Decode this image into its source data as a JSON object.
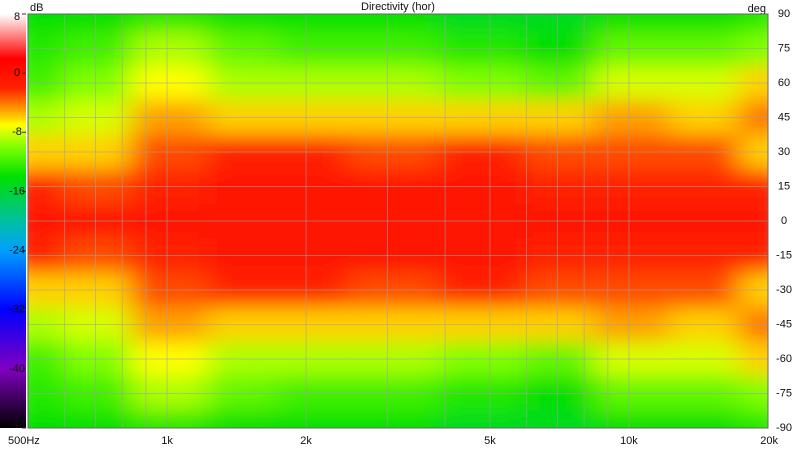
{
  "chart_data": {
    "type": "heatmap",
    "title": "Directivity (hor)",
    "colorbar_label": "dB",
    "y_axis_label": "deg",
    "x": [
      500,
      700,
      1000,
      1500,
      2000,
      3000,
      5000,
      7000,
      10000,
      15000,
      20000
    ],
    "y": [
      90,
      75,
      60,
      45,
      30,
      15,
      0,
      -15,
      -30,
      -45,
      -60,
      -75,
      -90
    ],
    "z": [
      [
        -14,
        -14,
        -13,
        -14,
        -14,
        -14,
        -15,
        -15,
        -14,
        -14,
        -13
      ],
      [
        -13,
        -12,
        -9,
        -11,
        -12,
        -12,
        -13,
        -14,
        -11,
        -11,
        -10
      ],
      [
        -12,
        -10,
        -7,
        -9,
        -9,
        -9,
        -10,
        -11,
        -8,
        -8,
        -6
      ],
      [
        -9,
        -8,
        -5,
        -6,
        -6,
        -6,
        -6,
        -6,
        -5,
        -6,
        -4
      ],
      [
        -6,
        -6,
        -3,
        -2,
        -2,
        -3,
        -2,
        -3,
        -3,
        -3,
        -6
      ],
      [
        -2,
        -3,
        -2,
        -1,
        -1,
        -1,
        -1,
        -2,
        -2,
        -2,
        -2
      ],
      [
        -1,
        -1,
        -1,
        -1,
        -1,
        -1,
        -1,
        -1,
        -1,
        -1,
        -1
      ],
      [
        -2,
        -3,
        -2,
        -1,
        -1,
        -1,
        -1,
        -2,
        -2,
        -2,
        -2
      ],
      [
        -6,
        -6,
        -3,
        -2,
        -2,
        -3,
        -2,
        -3,
        -3,
        -3,
        -6
      ],
      [
        -9,
        -8,
        -5,
        -6,
        -6,
        -6,
        -6,
        -6,
        -5,
        -6,
        -4
      ],
      [
        -12,
        -10,
        -7,
        -9,
        -9,
        -9,
        -10,
        -11,
        -8,
        -8,
        -6
      ],
      [
        -13,
        -12,
        -9,
        -11,
        -12,
        -12,
        -13,
        -14,
        -11,
        -11,
        -10
      ],
      [
        -14,
        -14,
        -13,
        -14,
        -14,
        -14,
        -15,
        -15,
        -14,
        -14,
        -13
      ]
    ],
    "xlim": [
      500,
      20000
    ],
    "x_log_scale": true,
    "xticks": [
      {
        "value": 500,
        "label": "500Hz"
      },
      {
        "value": 1000,
        "label": "1k"
      },
      {
        "value": 2000,
        "label": "2k"
      },
      {
        "value": 5000,
        "label": "5k"
      },
      {
        "value": 10000,
        "label": "10k"
      },
      {
        "value": 20000,
        "label": "20k"
      }
    ],
    "x_minor_grid": [
      600,
      700,
      800,
      900,
      3000,
      4000,
      6000,
      7000,
      8000,
      9000
    ],
    "ylim": [
      -90,
      90
    ],
    "yticks": [
      90,
      75,
      60,
      45,
      30,
      15,
      0,
      -15,
      -30,
      -45,
      -60,
      -75,
      -90
    ],
    "clim": [
      -48,
      8
    ],
    "cticks": [
      8,
      0,
      -8,
      -16,
      -24,
      -32,
      -40,
      -48
    ],
    "colorscale": [
      {
        "value": 8,
        "color": "#ffffff"
      },
      {
        "value": 2,
        "color": "#ff0000"
      },
      {
        "value": -2,
        "color": "#ff2000"
      },
      {
        "value": -5,
        "color": "#ffa000"
      },
      {
        "value": -7,
        "color": "#ffff00"
      },
      {
        "value": -10,
        "color": "#80ff00"
      },
      {
        "value": -14,
        "color": "#00e000"
      },
      {
        "value": -20,
        "color": "#00c0a0"
      },
      {
        "value": -24,
        "color": "#00a0ff"
      },
      {
        "value": -32,
        "color": "#0000ff"
      },
      {
        "value": -40,
        "color": "#8000c0"
      },
      {
        "value": -48,
        "color": "#000000"
      }
    ],
    "grid": true
  }
}
